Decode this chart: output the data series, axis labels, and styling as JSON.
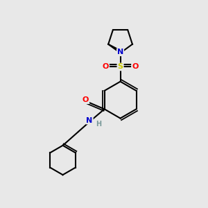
{
  "background_color": "#e8e8e8",
  "bond_color": "#000000",
  "atom_colors": {
    "N": "#0000cc",
    "O": "#ff0000",
    "S": "#cccc00",
    "H": "#7a9a9a",
    "C": "#000000"
  },
  "figsize": [
    3.0,
    3.0
  ],
  "dpi": 100,
  "xlim": [
    0,
    10
  ],
  "ylim": [
    0,
    10
  ]
}
